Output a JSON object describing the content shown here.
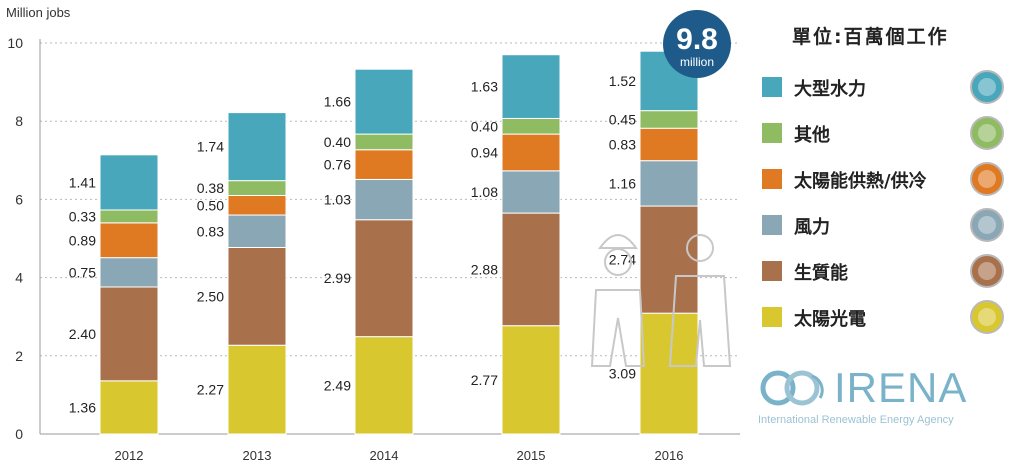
{
  "chart_data": {
    "type": "bar",
    "stacked": true,
    "ylabel": "Million jobs",
    "ylim": [
      0,
      10
    ],
    "yticks": [
      0,
      2,
      4,
      6,
      8,
      10
    ],
    "categories": [
      "2012",
      "2013",
      "2014",
      "2015",
      "2016"
    ],
    "series": [
      {
        "name": "太陽光電",
        "color": "#d9c730",
        "values": [
          1.36,
          2.27,
          2.49,
          2.77,
          3.09
        ]
      },
      {
        "name": "生質能",
        "color": "#a8714c",
        "values": [
          2.4,
          2.5,
          2.99,
          2.88,
          2.74
        ]
      },
      {
        "name": "風力",
        "color": "#8aa7b6",
        "values": [
          0.75,
          0.83,
          1.03,
          1.08,
          1.16
        ]
      },
      {
        "name": "太陽能供熱/供冷",
        "color": "#e07a22",
        "values": [
          0.89,
          0.5,
          0.76,
          0.94,
          0.83
        ]
      },
      {
        "name": "其他",
        "color": "#8fbb63",
        "values": [
          0.33,
          0.38,
          0.4,
          0.4,
          0.45
        ]
      },
      {
        "name": "大型水力",
        "color": "#48a7bb",
        "values": [
          1.41,
          1.74,
          1.66,
          1.63,
          1.52
        ]
      }
    ],
    "value_labels": [
      [
        "1.36",
        "2.40",
        "0.75",
        "0.89",
        "0.33",
        "1.41"
      ],
      [
        "2.27",
        "2.50",
        "0.83",
        "0.50",
        "0.38",
        "1.74"
      ],
      [
        "2.49",
        "2.99",
        "1.03",
        "0.76",
        "0.40",
        "1.66"
      ],
      [
        "2.77",
        "2.88",
        "1.08",
        "0.94",
        "0.40",
        "1.63"
      ],
      [
        "3.09",
        "2.74",
        "1.16",
        "0.83",
        "0.45",
        "1.52"
      ]
    ],
    "total_badge": {
      "value": "9.8",
      "unit": "million"
    },
    "legend": {
      "title": "單位:百萬個工作",
      "placement": "right",
      "order": [
        "大型水力",
        "其他",
        "太陽能供熱/供冷",
        "風力",
        "生質能",
        "太陽光電"
      ]
    }
  },
  "logo": {
    "name": "IRENA",
    "subtitle": "International Renewable Energy Agency"
  }
}
